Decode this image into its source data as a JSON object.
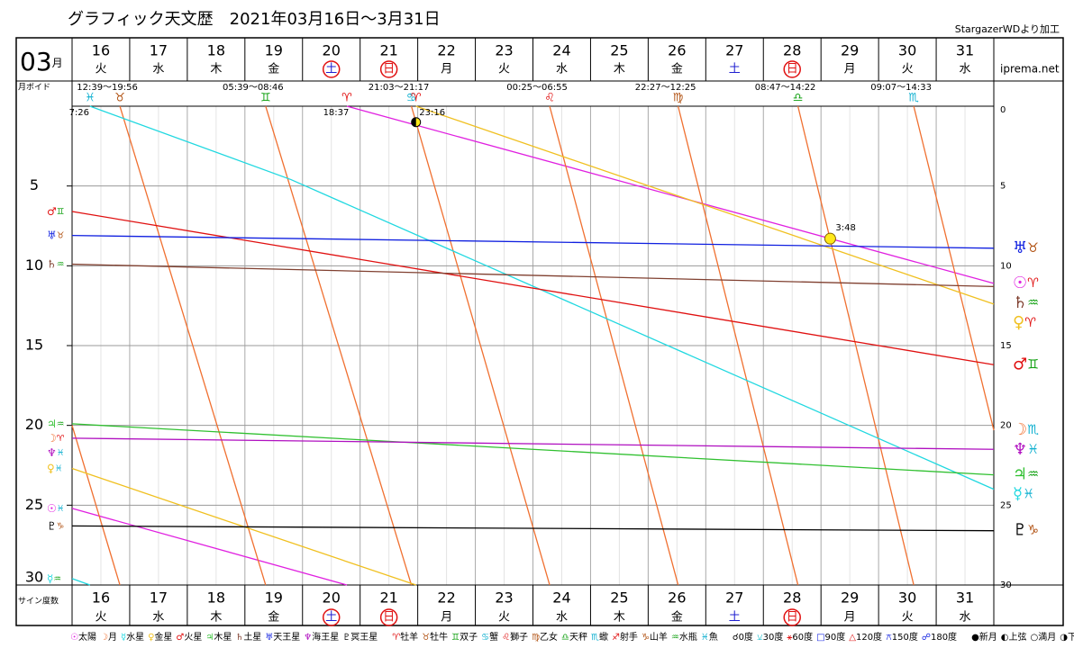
{
  "header": {
    "title": "グラフィック天文歴　2021年03月16日～3月31日",
    "source": "StargazerWDより加工",
    "month": "03",
    "month_unit": "月",
    "site": "iprema.net",
    "void_label": "月ボイド"
  },
  "chart_data": {
    "type": "line",
    "y_label": "サイン度数",
    "categories": [
      "16",
      "17",
      "18",
      "19",
      "20",
      "21",
      "22",
      "23",
      "24",
      "25",
      "26",
      "27",
      "28",
      "29",
      "30",
      "31"
    ],
    "weekdays": [
      "火",
      "水",
      "木",
      "金",
      "土",
      "日",
      "月",
      "火",
      "水",
      "木",
      "金",
      "土",
      "日",
      "月",
      "火",
      "水"
    ],
    "weekday_colors": [
      "#000",
      "#000",
      "#000",
      "#000",
      "#2020d0",
      "#e01010",
      "#000",
      "#000",
      "#000",
      "#000",
      "#000",
      "#2020d0",
      "#e01010",
      "#000",
      "#000",
      "#000"
    ],
    "circled": [
      false,
      false,
      false,
      false,
      true,
      true,
      false,
      false,
      false,
      false,
      false,
      false,
      true,
      false,
      false,
      false
    ],
    "xlim": [
      16,
      32
    ],
    "ylim": [
      0,
      30
    ],
    "yticks": [
      0,
      5,
      10,
      15,
      20,
      25,
      30
    ],
    "yticks_left": [
      5,
      10,
      15,
      20,
      25,
      30
    ],
    "signs": [
      {
        "symbol": "♈",
        "name": "牡羊",
        "color": "#e01010"
      },
      {
        "symbol": "♉",
        "name": "牡牛",
        "color": "#b05010"
      },
      {
        "symbol": "♊",
        "name": "双子",
        "color": "#10a010"
      },
      {
        "symbol": "♋",
        "name": "蟹",
        "color": "#10b0d0"
      },
      {
        "symbol": "♌",
        "name": "獅子",
        "color": "#e01010"
      },
      {
        "symbol": "♍",
        "name": "乙女",
        "color": "#b05010"
      },
      {
        "symbol": "♎",
        "name": "天秤",
        "color": "#10a010"
      },
      {
        "symbol": "♏",
        "name": "蠍",
        "color": "#10b0d0"
      },
      {
        "symbol": "♐",
        "name": "射手",
        "color": "#e01010"
      },
      {
        "symbol": "♑",
        "name": "山羊",
        "color": "#b05010"
      },
      {
        "symbol": "♒",
        "name": "水瓶",
        "color": "#10a010"
      },
      {
        "symbol": "♓",
        "name": "魚",
        "color": "#10b0d0"
      }
    ],
    "series": [
      {
        "symbol": "☉",
        "name": "太陽",
        "color": "#e020e0",
        "start_sign": "♓",
        "end_sign": "♈",
        "x": [
          16,
          20.77,
          null,
          20.77,
          32
        ],
        "values": [
          25.2,
          30,
          null,
          0,
          11.1
        ]
      },
      {
        "symbol": "☽",
        "name": "月",
        "color": "#f07030",
        "start_sign": "♈",
        "end_sign": "♏",
        "x": [
          16,
          16.83,
          null,
          16.83,
          19.36,
          null,
          19.36,
          21.89,
          null,
          21.89,
          24.29,
          null,
          24.29,
          26.52,
          null,
          26.52,
          28.6,
          null,
          28.6,
          30.61,
          null,
          30.61,
          32
        ],
        "values": [
          20,
          30,
          null,
          0,
          30,
          null,
          0,
          30,
          null,
          0,
          30,
          null,
          0,
          30,
          null,
          0,
          30,
          null,
          0,
          30,
          null,
          0,
          20.3
        ]
      },
      {
        "symbol": "☿",
        "name": "水星",
        "color": "#20d8e0",
        "start_sign": "♒",
        "end_sign": "♓",
        "x": [
          16,
          16.31,
          null,
          16.31,
          19.8,
          32
        ],
        "values": [
          29.6,
          30,
          null,
          0,
          4.6,
          24
        ]
      },
      {
        "symbol": "♀",
        "name": "金星",
        "color": "#f0c020",
        "start_sign": "♓",
        "end_sign": "♈",
        "x": [
          16,
          21.97,
          null,
          21.97,
          32
        ],
        "values": [
          22.7,
          30,
          null,
          0,
          12.4
        ]
      },
      {
        "symbol": "♂",
        "name": "火星",
        "color": "#e01010",
        "start_sign": "♊",
        "end_sign": "♊",
        "x": [
          16,
          32
        ],
        "values": [
          6.6,
          16.2
        ]
      },
      {
        "symbol": "♃",
        "name": "木星",
        "color": "#30c030",
        "start_sign": "♒",
        "end_sign": "♒",
        "x": [
          16,
          32
        ],
        "values": [
          19.9,
          23.1
        ]
      },
      {
        "symbol": "♄",
        "name": "土星",
        "color": "#804030",
        "start_sign": "♒",
        "end_sign": "♒",
        "x": [
          16,
          32
        ],
        "values": [
          9.9,
          11.3
        ]
      },
      {
        "symbol": "♅",
        "name": "天王星",
        "color": "#1020e0",
        "start_sign": "♉",
        "end_sign": "♉",
        "x": [
          16,
          32
        ],
        "values": [
          8.1,
          8.9
        ]
      },
      {
        "symbol": "♆",
        "name": "海王星",
        "color": "#b010c0",
        "start_sign": "♓",
        "end_sign": "♓",
        "x": [
          16,
          32
        ],
        "values": [
          20.8,
          21.5
        ]
      },
      {
        "symbol": "♇",
        "name": "冥王星",
        "color": "#000000",
        "start_sign": "♑",
        "end_sign": "♑",
        "x": [
          16,
          32
        ],
        "values": [
          26.3,
          26.6
        ]
      }
    ],
    "ingresses": [
      {
        "x": 16.31,
        "sign": "♓",
        "time": "7:26"
      },
      {
        "x": 16.83,
        "sign": "♉",
        "void": "12:39～19:56"
      },
      {
        "x": 19.36,
        "sign": "♊",
        "void": "05:39～08:46"
      },
      {
        "x": 20.77,
        "sign": "♈",
        "time": "18:37"
      },
      {
        "x": 21.89,
        "sign": "♋",
        "void": "21:03～21:17"
      },
      {
        "x": 21.97,
        "sign": "♈",
        "time": "23:16"
      },
      {
        "x": 24.29,
        "sign": "♌",
        "void": "00:25～06:55"
      },
      {
        "x": 26.52,
        "sign": "♍",
        "void": "22:27～12:25"
      },
      {
        "x": 28.6,
        "sign": "♎",
        "void": "08:47～14:22"
      },
      {
        "x": 30.61,
        "sign": "♏",
        "void": "09:07～14:33"
      }
    ],
    "phases": [
      {
        "kind": "first",
        "x": 21.97,
        "y": 1.0
      },
      {
        "kind": "full",
        "x": 29.16,
        "y": 8.3,
        "time": "3:48"
      }
    ],
    "aspects": [
      {
        "symbol": "☌",
        "name": "0度",
        "color": "#000000"
      },
      {
        "symbol": "⚺",
        "name": "30度",
        "color": "#20c0d0"
      },
      {
        "symbol": "⚹",
        "name": "60度",
        "color": "#e01010"
      },
      {
        "symbol": "□",
        "name": "90度",
        "color": "#1020e0"
      },
      {
        "symbol": "△",
        "name": "120度",
        "color": "#e01010"
      },
      {
        "symbol": "⚻",
        "name": "150度",
        "color": "#1020e0"
      },
      {
        "symbol": "☍",
        "name": "180度",
        "color": "#1020e0"
      }
    ],
    "phase_legend": [
      {
        "symbol": "●",
        "name": "新月"
      },
      {
        "symbol": "◐",
        "name": "上弦"
      },
      {
        "symbol": "○",
        "name": "満月"
      },
      {
        "symbol": "◑",
        "name": "下弦"
      }
    ]
  }
}
